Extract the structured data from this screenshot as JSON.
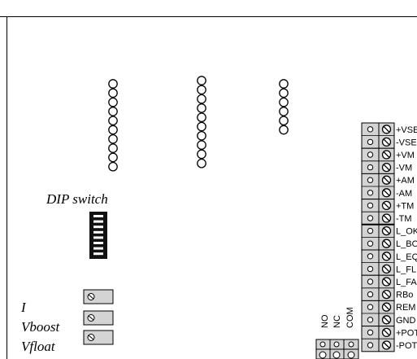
{
  "labels": {
    "dip": "DIP switch",
    "pots": [
      "I",
      "Vboost",
      "Vfloat"
    ]
  },
  "relay": {
    "labels": [
      "NO",
      "NC",
      "COM"
    ]
  },
  "terminal": {
    "labels": [
      "+VSE",
      "-VSE",
      "+VM",
      "-VM",
      "+AM",
      "-AM",
      "+TM",
      "-TM",
      "L_OK",
      "L_BO",
      "L_EQ",
      "L_FL",
      "L_FA",
      "RBo",
      "REM",
      "GND",
      "+POT",
      "-POT"
    ]
  },
  "colors": {
    "block_fill": "#d4d4d4",
    "line": "#000000",
    "dip_body": "#111111"
  }
}
